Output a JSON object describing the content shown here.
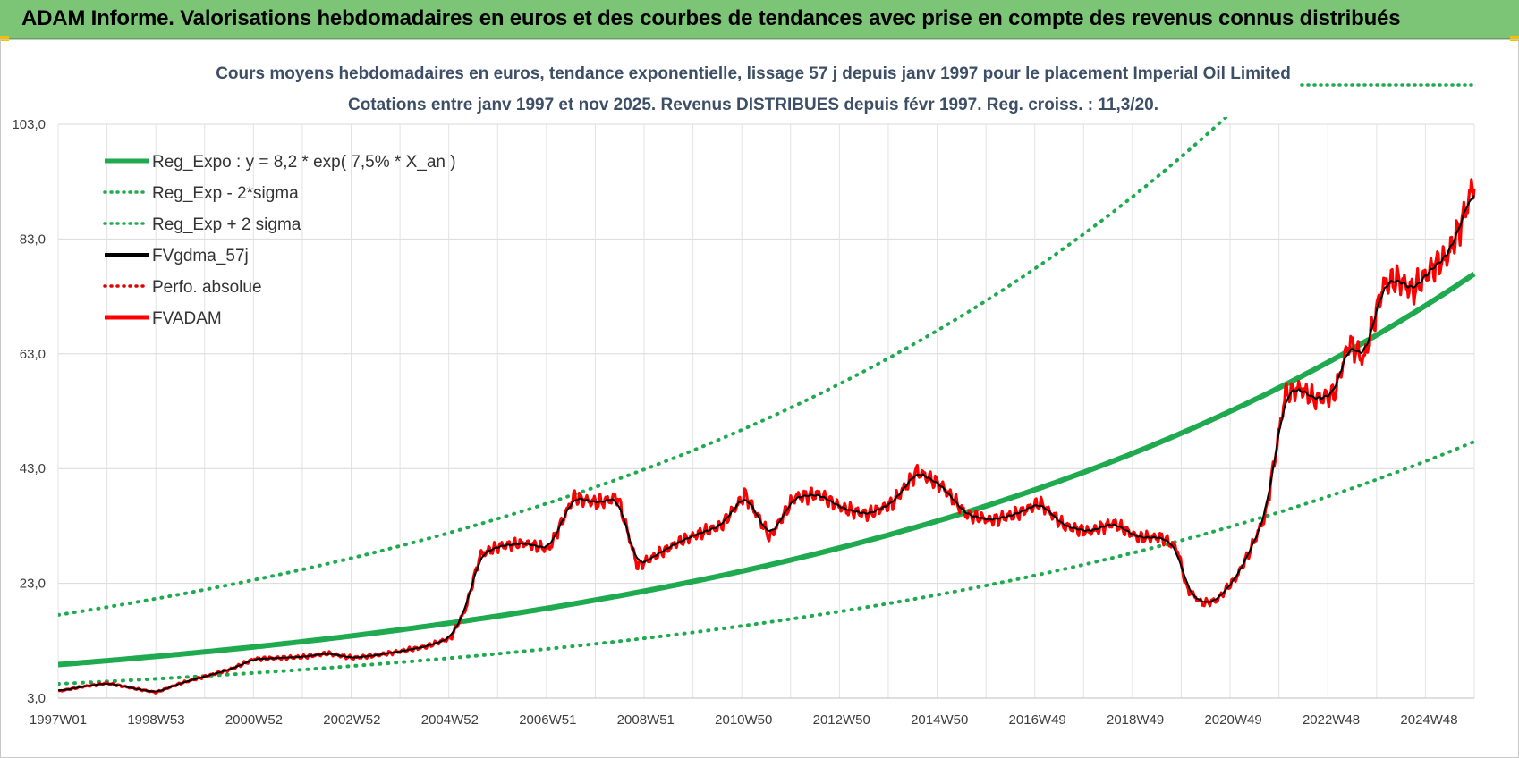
{
  "header": {
    "title": "ADAM Informe. Valorisations hebdomadaires en euros et des courbes de tendances avec prise en compte des revenus connus distribués"
  },
  "colors": {
    "banner": "#7cc576",
    "trend": "#1faa50",
    "band": "#1faa50",
    "smooth": "#000000",
    "perf": "#e00000",
    "fvadam": "#ff0000",
    "accent_corner": "#f3c000"
  },
  "chart_data": {
    "type": "line",
    "title_line1": "Cours moyens hebdomadaires en euros, tendance exponentielle, lissage 57 j depuis janv 1997 pour le placement Imperial Oil Limited",
    "title_line2": "Cotations entre janv 1997 et nov 2025. Revenus DISTRIBUES depuis févr 1997. Reg. croiss. : 11,3/20.",
    "y_ticks": [
      "103,0",
      "83,0",
      "63,0",
      "43,0",
      "23,0",
      "3,0"
    ],
    "ylim": [
      3,
      103
    ],
    "x_ticks": [
      "1997W01",
      "1998W53",
      "2000W52",
      "2002W52",
      "2004W52",
      "2006W51",
      "2008W51",
      "2010W50",
      "2012W50",
      "2014W50",
      "2016W49",
      "2018W49",
      "2020W49",
      "2022W48",
      "2024W48"
    ],
    "xlim": [
      1997.0,
      2025.85
    ],
    "grid": true,
    "legend_position": "top-left",
    "legend": [
      {
        "label": "Reg_Expo : y = 8,2 * exp( 7,5% *  X_an )",
        "style": "solid-thick",
        "color": "#1faa50"
      },
      {
        "label": "Reg_Exp - 2*sigma",
        "style": "dotted",
        "color": "#1faa50"
      },
      {
        "label": "Reg_Exp + 2 sigma",
        "style": "dotted",
        "color": "#1faa50"
      },
      {
        "label": "FVgdma_57j",
        "style": "solid",
        "color": "#000000"
      },
      {
        "label": "Perfo. absolue",
        "style": "dotted",
        "color": "#e00000"
      },
      {
        "label": "FVADAM",
        "style": "solid-thick",
        "color": "#ff0000"
      }
    ],
    "series": [
      {
        "name": "Reg_Expo : y = 8,2 * exp( 7,5% *  X_an )",
        "kind": "trend",
        "a": 8.2,
        "rate": 0.075,
        "x0": 1996.0
      },
      {
        "name": "Reg_Exp - 2*sigma",
        "kind": "band",
        "factor": 0.62
      },
      {
        "name": "Reg_Exp + 2 sigma",
        "kind": "band",
        "factor": 1.98
      },
      {
        "name": "FVgdma_57j",
        "kind": "smooth"
      },
      {
        "name": "FVADAM",
        "kind": "price",
        "x": [
          1997.0,
          1997.5,
          1998.0,
          1998.6,
          1999.0,
          1999.5,
          2000.0,
          2000.5,
          2001.0,
          2001.5,
          2002.0,
          2002.5,
          2003.0,
          2003.5,
          2004.0,
          2004.5,
          2005.0,
          2005.3,
          2005.6,
          2006.0,
          2006.5,
          2007.0,
          2007.5,
          2008.0,
          2008.4,
          2008.8,
          2009.2,
          2009.6,
          2010.0,
          2010.5,
          2011.0,
          2011.5,
          2012.0,
          2012.5,
          2013.0,
          2013.5,
          2014.0,
          2014.5,
          2015.0,
          2015.5,
          2016.0,
          2016.5,
          2017.0,
          2017.5,
          2018.0,
          2018.5,
          2019.0,
          2019.5,
          2019.8,
          2020.0,
          2020.3,
          2020.6,
          2021.0,
          2021.3,
          2021.6,
          2022.0,
          2022.3,
          2022.6,
          2023.0,
          2023.3,
          2023.6,
          2024.0,
          2024.3,
          2024.6,
          2025.0,
          2025.3,
          2025.6,
          2025.85
        ],
        "values": [
          4.2,
          5.0,
          5.6,
          4.6,
          4.0,
          5.6,
          6.8,
          8.0,
          9.8,
          10.0,
          10.2,
          10.8,
          10.0,
          10.5,
          11.2,
          12.0,
          13.5,
          18.5,
          28.0,
          29.5,
          30.0,
          29.0,
          38.0,
          37.0,
          38.0,
          26.0,
          28.0,
          30.0,
          31.5,
          33.0,
          38.5,
          31.0,
          38.0,
          38.5,
          36.0,
          35.0,
          37.0,
          42.5,
          40.0,
          35.0,
          34.0,
          35.0,
          37.0,
          33.0,
          32.0,
          33.5,
          31.0,
          31.0,
          29.0,
          22.0,
          19.5,
          20.0,
          24.0,
          29.0,
          35.0,
          56.0,
          57.0,
          55.0,
          56.0,
          65.0,
          62.0,
          75.0,
          76.0,
          74.0,
          78.0,
          80.0,
          86.0,
          93.0
        ]
      }
    ]
  }
}
